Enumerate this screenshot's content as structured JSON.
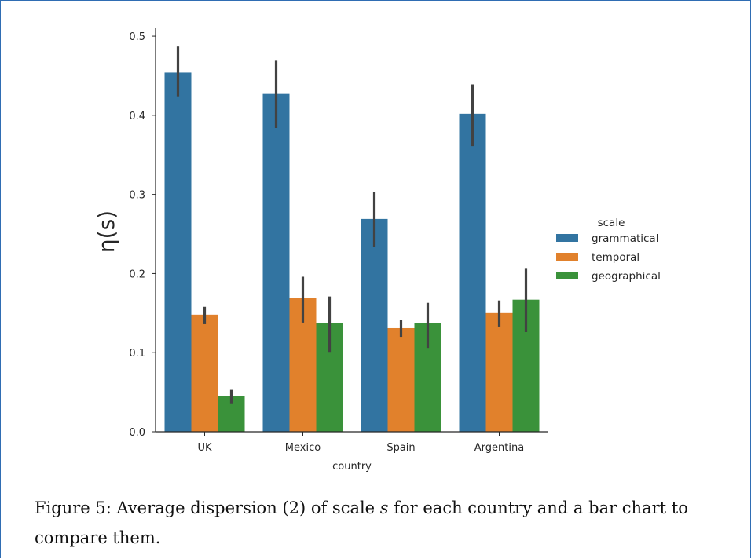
{
  "chart_data": {
    "type": "bar",
    "xlabel": "country",
    "ylabel": "η(s)",
    "ylim": [
      0,
      0.51
    ],
    "yticks": [
      0.0,
      0.1,
      0.2,
      0.3,
      0.4,
      0.5
    ],
    "ytick_labels": [
      "0.0",
      "0.1",
      "0.2",
      "0.3",
      "0.4",
      "0.5"
    ],
    "categories": [
      "UK",
      "Mexico",
      "Spain",
      "Argentina"
    ],
    "legend": {
      "title": "scale",
      "placement": "right"
    },
    "series": [
      {
        "name": "grammatical",
        "color": "#3274a1",
        "values": [
          0.454,
          0.427,
          0.269,
          0.402
        ],
        "ci_low": [
          0.424,
          0.384,
          0.234,
          0.361
        ],
        "ci_high": [
          0.487,
          0.469,
          0.303,
          0.439
        ]
      },
      {
        "name": "temporal",
        "color": "#e1812c",
        "values": [
          0.148,
          0.169,
          0.131,
          0.15
        ],
        "ci_low": [
          0.136,
          0.138,
          0.12,
          0.133
        ],
        "ci_high": [
          0.158,
          0.196,
          0.141,
          0.166
        ]
      },
      {
        "name": "geographical",
        "color": "#3a923a",
        "values": [
          0.045,
          0.137,
          0.137,
          0.167
        ],
        "ci_low": [
          0.036,
          0.101,
          0.106,
          0.126
        ],
        "ci_high": [
          0.053,
          0.171,
          0.163,
          0.207
        ]
      }
    ]
  },
  "caption": {
    "part1": "Figure 5: Average dispersion (2) of scale ",
    "var": "s",
    "part2": " for each country and a bar chart to compare them."
  }
}
